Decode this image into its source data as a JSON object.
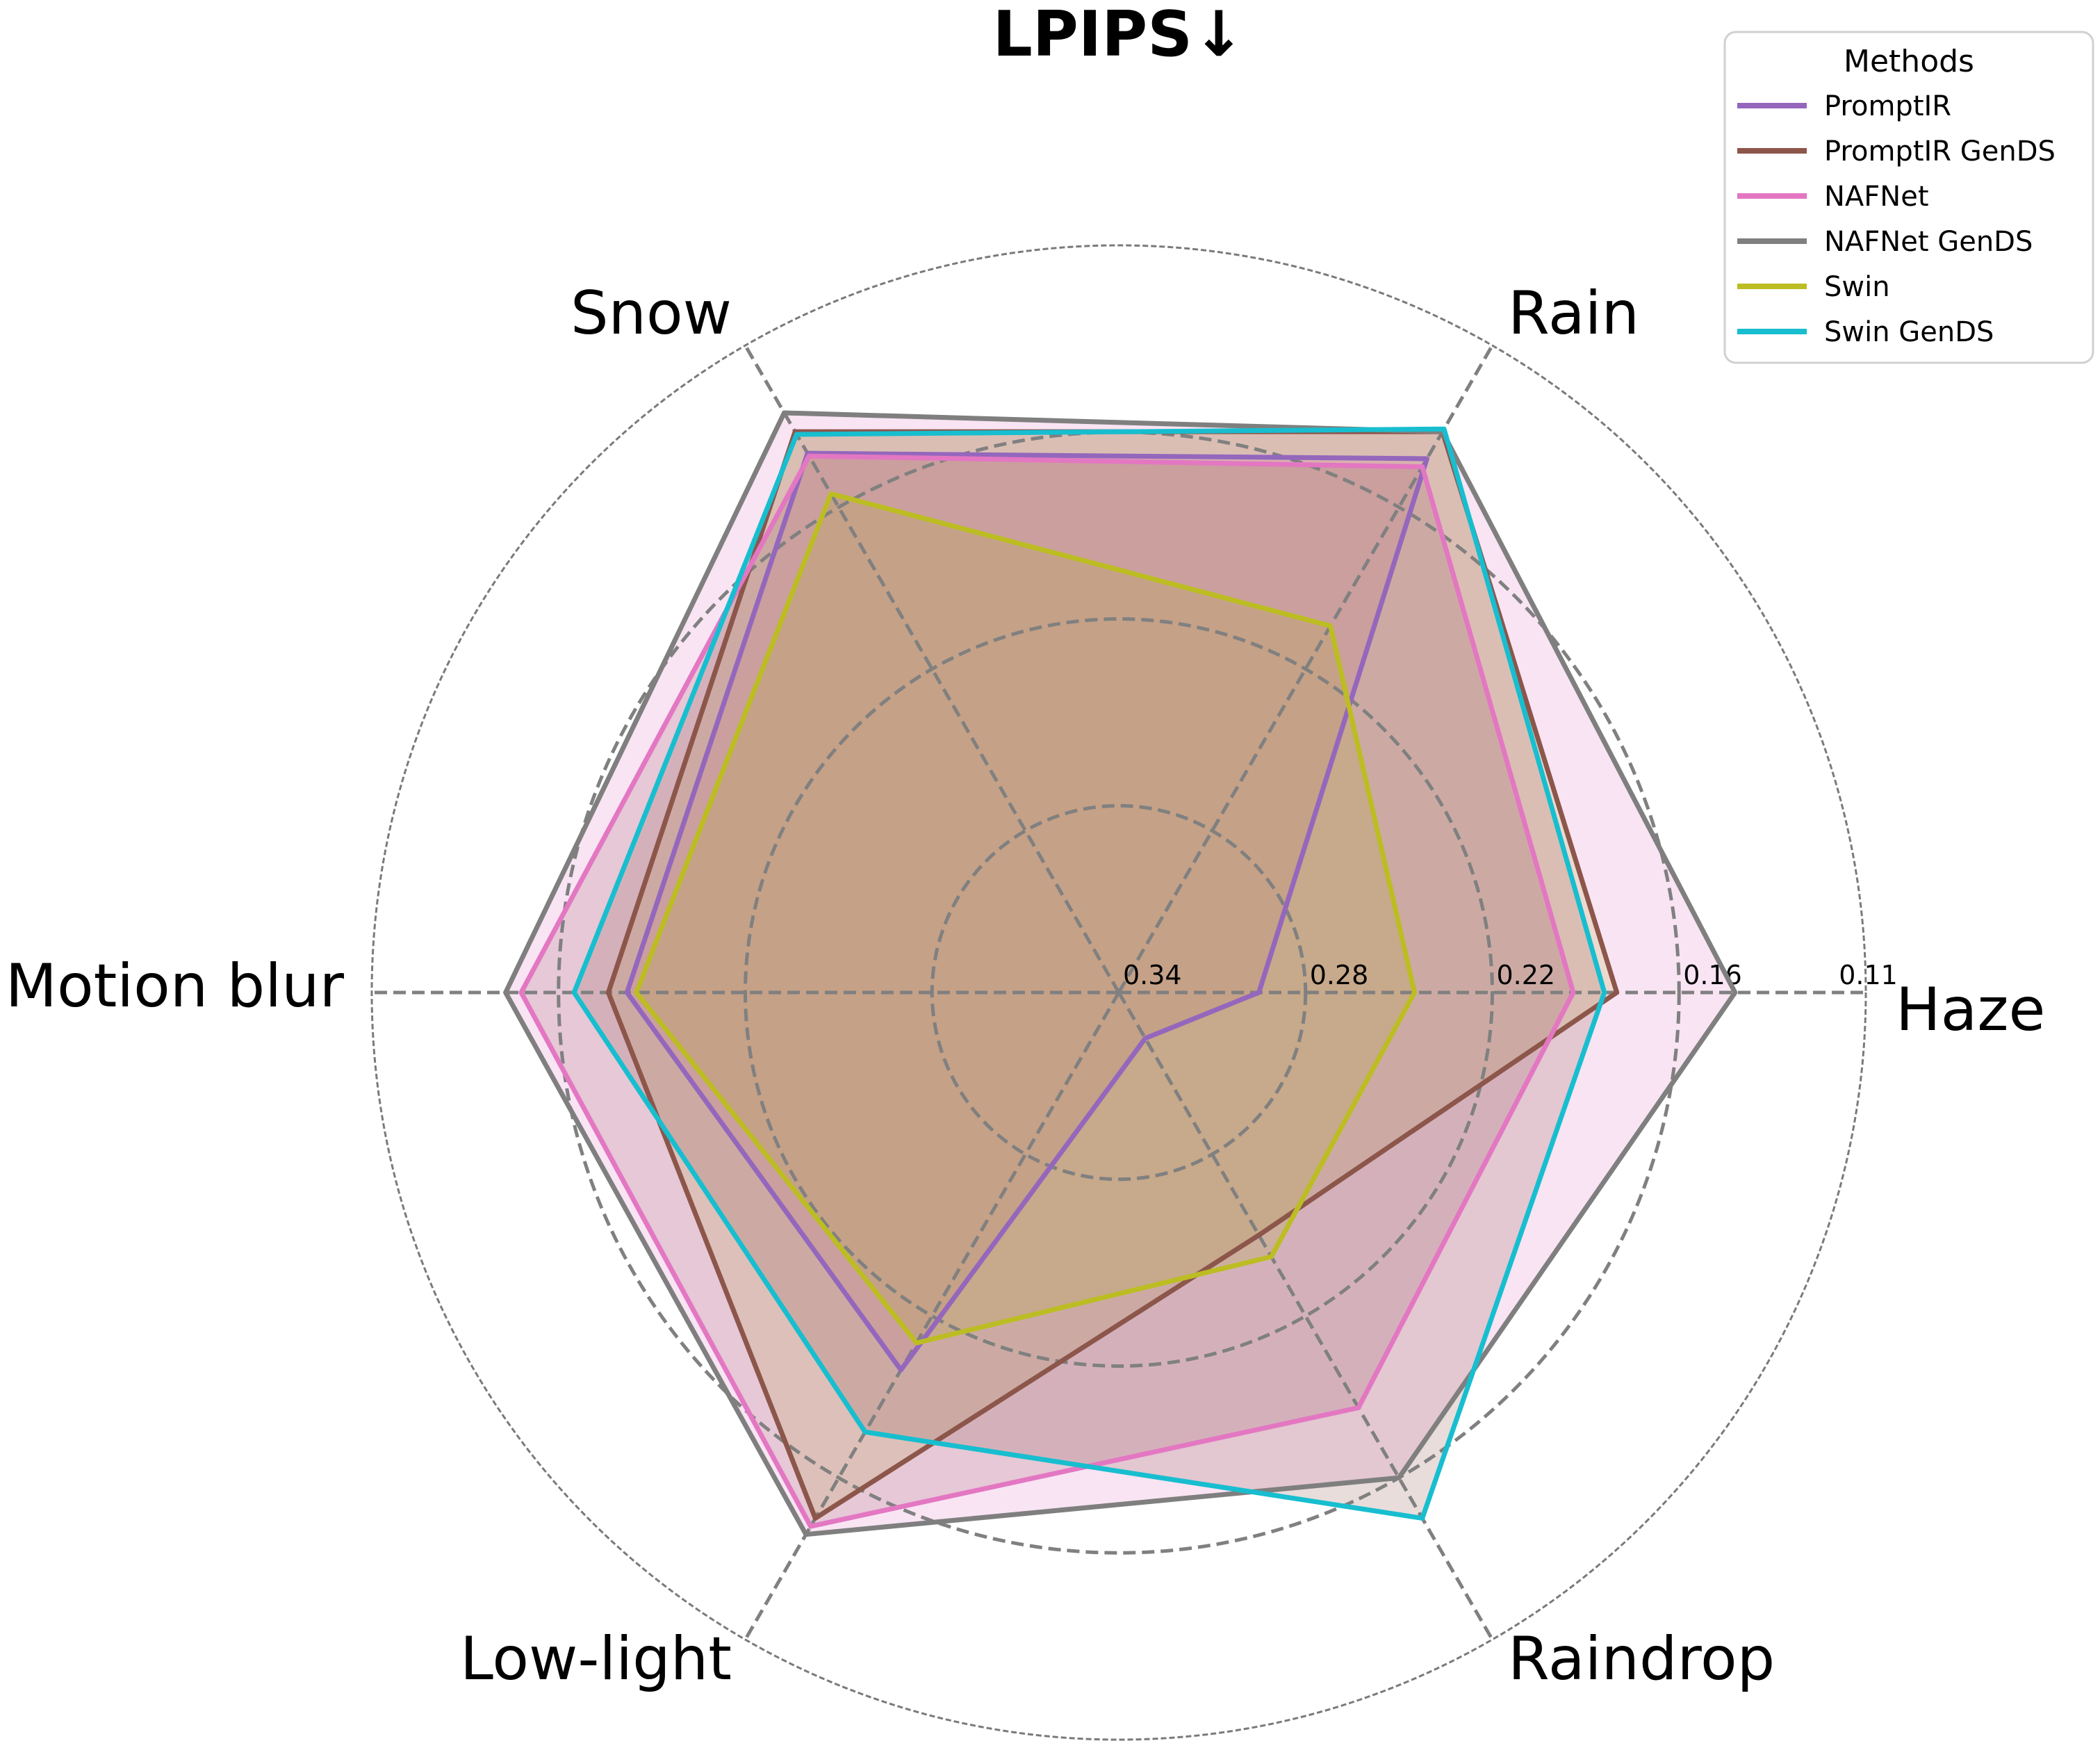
{
  "chart_data": {
    "type": "radar",
    "title": "LPIPS↓",
    "axes": [
      "Haze",
      "Rain",
      "Snow",
      "Motion blur",
      "Low-light",
      "Raindrop"
    ],
    "scale": {
      "center_value": 0.34,
      "outer_value": 0.1,
      "tick_values": [
        0.34,
        0.28,
        0.22,
        0.16,
        0.11
      ],
      "tick_labels": [
        "0.34",
        "0.28",
        "0.22",
        "0.16",
        "0.11"
      ],
      "inverted": true
    },
    "grid": true,
    "legend": {
      "title": "Methods",
      "position": "top-right"
    },
    "series": [
      {
        "name": "PromptIR",
        "color": "#9467bd",
        "values": [
          0.295,
          0.142,
          0.14,
          0.182,
          0.2,
          0.323
        ]
      },
      {
        "name": "PromptIR GenDS",
        "color": "#8c564b",
        "values": [
          0.18,
          0.132,
          0.132,
          0.176,
          0.145,
          0.25
        ]
      },
      {
        "name": "NAFNet",
        "color": "#e377c2",
        "values": [
          0.194,
          0.145,
          0.141,
          0.148,
          0.142,
          0.186
        ]
      },
      {
        "name": "NAFNet GenDS",
        "color": "#7f7f7f",
        "values": [
          0.142,
          0.132,
          0.125,
          0.143,
          0.139,
          0.16
        ]
      },
      {
        "name": "Swin",
        "color": "#bcbd22",
        "values": [
          0.245,
          0.204,
          0.155,
          0.185,
          0.21,
          0.242
        ]
      },
      {
        "name": "Swin GenDS",
        "color": "#17becf",
        "values": [
          0.184,
          0.131,
          0.133,
          0.165,
          0.177,
          0.145
        ]
      }
    ],
    "fill": {
      "colors": [
        "#e377c2",
        "#bcbd22",
        "#8c564b"
      ],
      "opacity": 0.2
    }
  }
}
